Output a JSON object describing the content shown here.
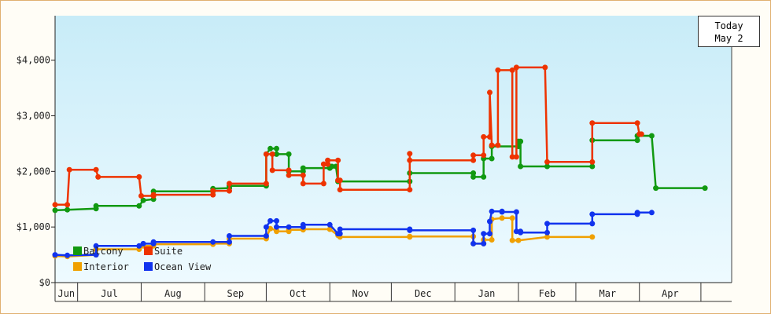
{
  "today": {
    "label": "Today",
    "date": "May 2"
  },
  "chart_data": {
    "type": "line",
    "title": "",
    "xlabel": "",
    "ylabel": "",
    "ylim": [
      0,
      4800
    ],
    "yticks": [
      0,
      1000,
      2000,
      3000,
      4000
    ],
    "ytick_labels": [
      "$0",
      "$1,000",
      "$2,000",
      "$3,000",
      "$4,000"
    ],
    "xlim": [
      0,
      330
    ],
    "months": [
      {
        "label": "Jun",
        "start": 0,
        "end": 11
      },
      {
        "label": "Jul",
        "start": 11,
        "end": 42
      },
      {
        "label": "Aug",
        "start": 42,
        "end": 73
      },
      {
        "label": "Sep",
        "start": 73,
        "end": 103
      },
      {
        "label": "Oct",
        "start": 103,
        "end": 134
      },
      {
        "label": "Nov",
        "start": 134,
        "end": 164
      },
      {
        "label": "Dec",
        "start": 164,
        "end": 195
      },
      {
        "label": "Jan",
        "start": 195,
        "end": 226
      },
      {
        "label": "Feb",
        "start": 226,
        "end": 254
      },
      {
        "label": "Mar",
        "start": 254,
        "end": 285
      },
      {
        "label": "Apr",
        "start": 285,
        "end": 315
      }
    ],
    "legend": {
      "position": "bottom-left"
    },
    "series": [
      {
        "name": "Balcony",
        "color": "#119911",
        "points": [
          [
            0,
            1300
          ],
          [
            6,
            1310
          ],
          [
            20,
            1330
          ],
          [
            20,
            1380
          ],
          [
            41,
            1380
          ],
          [
            43,
            1480
          ],
          [
            48,
            1500
          ],
          [
            48,
            1640
          ],
          [
            77,
            1640
          ],
          [
            77,
            1690
          ],
          [
            85,
            1700
          ],
          [
            85,
            1740
          ],
          [
            103,
            1740
          ],
          [
            103,
            2310
          ],
          [
            105,
            2410
          ],
          [
            108,
            2410
          ],
          [
            108,
            2310
          ],
          [
            114,
            2310
          ],
          [
            114,
            2000
          ],
          [
            121,
            2000
          ],
          [
            121,
            2060
          ],
          [
            134,
            2060
          ],
          [
            134,
            2060
          ],
          [
            135,
            2090
          ],
          [
            137,
            2090
          ],
          [
            138,
            1820
          ],
          [
            138,
            1820
          ],
          [
            173,
            1820
          ],
          [
            173,
            1970
          ],
          [
            204,
            1970
          ],
          [
            204,
            1900
          ],
          [
            209,
            1900
          ],
          [
            209,
            2230
          ],
          [
            213,
            2230
          ],
          [
            213,
            2450
          ],
          [
            226,
            2450
          ],
          [
            226,
            2540
          ],
          [
            227,
            2540
          ],
          [
            227,
            2090
          ],
          [
            240,
            2090
          ],
          [
            240,
            2090
          ],
          [
            262,
            2090
          ],
          [
            262,
            2560
          ],
          [
            284,
            2560
          ],
          [
            284,
            2640
          ],
          [
            291,
            2640
          ],
          [
            293,
            1700
          ],
          [
            317,
            1700
          ]
        ]
      },
      {
        "name": "Suite",
        "color": "#ee3300",
        "points": [
          [
            0,
            1400
          ],
          [
            6,
            1400
          ],
          [
            7,
            2030
          ],
          [
            20,
            2030
          ],
          [
            21,
            1900
          ],
          [
            41,
            1900
          ],
          [
            42,
            1560
          ],
          [
            48,
            1560
          ],
          [
            48,
            1580
          ],
          [
            77,
            1580
          ],
          [
            77,
            1650
          ],
          [
            85,
            1650
          ],
          [
            85,
            1780
          ],
          [
            103,
            1780
          ],
          [
            103,
            2310
          ],
          [
            106,
            2310
          ],
          [
            106,
            2020
          ],
          [
            114,
            2020
          ],
          [
            114,
            1930
          ],
          [
            121,
            1930
          ],
          [
            121,
            1780
          ],
          [
            131,
            1780
          ],
          [
            131,
            2130
          ],
          [
            133,
            2130
          ],
          [
            133,
            2200
          ],
          [
            138,
            2200
          ],
          [
            138,
            1840
          ],
          [
            139,
            1840
          ],
          [
            139,
            1670
          ],
          [
            173,
            1670
          ],
          [
            173,
            2320
          ],
          [
            173,
            2200
          ],
          [
            204,
            2200
          ],
          [
            204,
            2290
          ],
          [
            209,
            2290
          ],
          [
            209,
            2620
          ],
          [
            212,
            2620
          ],
          [
            212,
            3420
          ],
          [
            213,
            2470
          ],
          [
            216,
            2470
          ],
          [
            216,
            3820
          ],
          [
            223,
            3820
          ],
          [
            223,
            2260
          ],
          [
            225,
            2260
          ],
          [
            225,
            3870
          ],
          [
            239,
            3870
          ],
          [
            240,
            2170
          ],
          [
            262,
            2170
          ],
          [
            262,
            2870
          ],
          [
            284,
            2870
          ],
          [
            285,
            2670
          ],
          [
            286,
            2670
          ]
        ]
      },
      {
        "name": "Interior",
        "color": "#f0a000",
        "points": [
          [
            0,
            480
          ],
          [
            6,
            470
          ],
          [
            20,
            500
          ],
          [
            20,
            600
          ],
          [
            41,
            600
          ],
          [
            43,
            660
          ],
          [
            48,
            660
          ],
          [
            48,
            690
          ],
          [
            77,
            690
          ],
          [
            77,
            700
          ],
          [
            85,
            700
          ],
          [
            85,
            790
          ],
          [
            103,
            790
          ],
          [
            103,
            810
          ],
          [
            105,
            970
          ],
          [
            108,
            940
          ],
          [
            108,
            920
          ],
          [
            114,
            920
          ],
          [
            114,
            950
          ],
          [
            121,
            950
          ],
          [
            121,
            960
          ],
          [
            134,
            960
          ],
          [
            138,
            850
          ],
          [
            139,
            820
          ],
          [
            173,
            820
          ],
          [
            173,
            830
          ],
          [
            204,
            830
          ],
          [
            204,
            700
          ],
          [
            209,
            700
          ],
          [
            209,
            770
          ],
          [
            213,
            770
          ],
          [
            213,
            1140
          ],
          [
            218,
            1160
          ],
          [
            218,
            1160
          ],
          [
            223,
            1160
          ],
          [
            223,
            760
          ],
          [
            226,
            760
          ],
          [
            226,
            760
          ],
          [
            240,
            820
          ],
          [
            262,
            820
          ],
          [
            262,
            820
          ]
        ]
      },
      {
        "name": "Ocean View",
        "color": "#1133ee",
        "points": [
          [
            0,
            500
          ],
          [
            6,
            490
          ],
          [
            20,
            500
          ],
          [
            20,
            660
          ],
          [
            41,
            660
          ],
          [
            43,
            700
          ],
          [
            48,
            700
          ],
          [
            48,
            730
          ],
          [
            77,
            730
          ],
          [
            77,
            730
          ],
          [
            85,
            730
          ],
          [
            85,
            840
          ],
          [
            103,
            840
          ],
          [
            103,
            1000
          ],
          [
            105,
            1110
          ],
          [
            108,
            1110
          ],
          [
            108,
            1000
          ],
          [
            114,
            1000
          ],
          [
            114,
            1000
          ],
          [
            121,
            1000
          ],
          [
            121,
            1040
          ],
          [
            134,
            1040
          ],
          [
            134,
            1040
          ],
          [
            138,
            880
          ],
          [
            139,
            880
          ],
          [
            139,
            960
          ],
          [
            173,
            960
          ],
          [
            173,
            940
          ],
          [
            204,
            940
          ],
          [
            204,
            700
          ],
          [
            209,
            700
          ],
          [
            209,
            880
          ],
          [
            212,
            880
          ],
          [
            212,
            1100
          ],
          [
            213,
            1280
          ],
          [
            218,
            1280
          ],
          [
            218,
            1270
          ],
          [
            225,
            1270
          ],
          [
            225,
            920
          ],
          [
            227,
            920
          ],
          [
            227,
            900
          ],
          [
            240,
            900
          ],
          [
            240,
            1060
          ],
          [
            262,
            1060
          ],
          [
            262,
            1230
          ],
          [
            284,
            1230
          ],
          [
            284,
            1260
          ],
          [
            291,
            1260
          ]
        ]
      }
    ]
  }
}
